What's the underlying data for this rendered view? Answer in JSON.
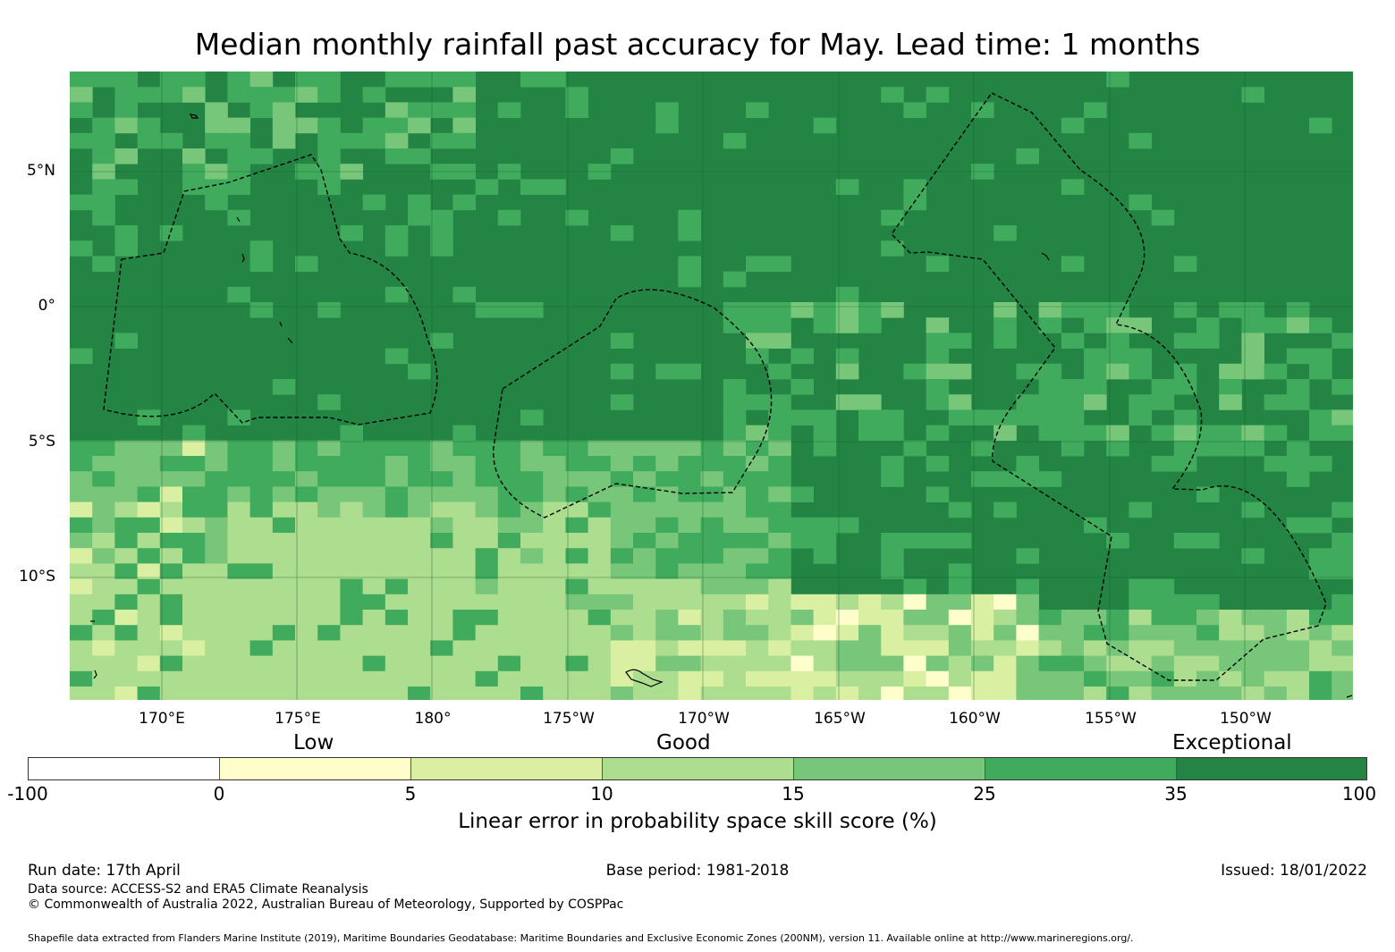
{
  "title": "Median monthly rainfall past accuracy for May. Lead time: 1 months",
  "map": {
    "lat_labels": [
      "5°N",
      "0°",
      "5°S",
      "10°S"
    ],
    "lon_labels": [
      "170°E",
      "175°E",
      "180°",
      "175°W",
      "170°W",
      "165°W",
      "160°W",
      "155°W",
      "150°W"
    ],
    "colors": {
      "exceptional": "#238443",
      "c25_35": "#41ab5d",
      "c15_25": "#78c679",
      "c10_15": "#addd8e",
      "c5_10": "#d9f0a3",
      "c0_5": "#ffffcc",
      "neg": "#ffffff",
      "gridline": "#1a5e2e",
      "boundary": "#000000"
    }
  },
  "legend": {
    "categories": [
      "Low",
      "Good",
      "Exceptional"
    ],
    "ticks": [
      "-100",
      "0",
      "5",
      "10",
      "15",
      "25",
      "35",
      "100"
    ],
    "bin_colors": [
      "#ffffff",
      "#ffffcc",
      "#d9f0a3",
      "#addd8e",
      "#78c679",
      "#41ab5d",
      "#238443"
    ],
    "label": "Linear error in probability space skill score (%)"
  },
  "footer": {
    "run_date": "Run date: 17th April",
    "base_period": "Base period: 1981-2018",
    "issued": "Issued: 18/01/2022",
    "data_source": "Data source: ACCESS-S2 and ERA5 Climate Reanalysis",
    "copyright": "© Commonwealth of Australia 2022, Australian Bureau of Meteorology, Supported by COSPPac",
    "shapefile": "Shapefile data extracted from Flanders Marine Institute (2019), Maritime Boundaries Geodatabase: Maritime Boundaries and Exclusive Economic Zones (200NM), version 11. Available online at http://www.marineregions.org/."
  }
}
